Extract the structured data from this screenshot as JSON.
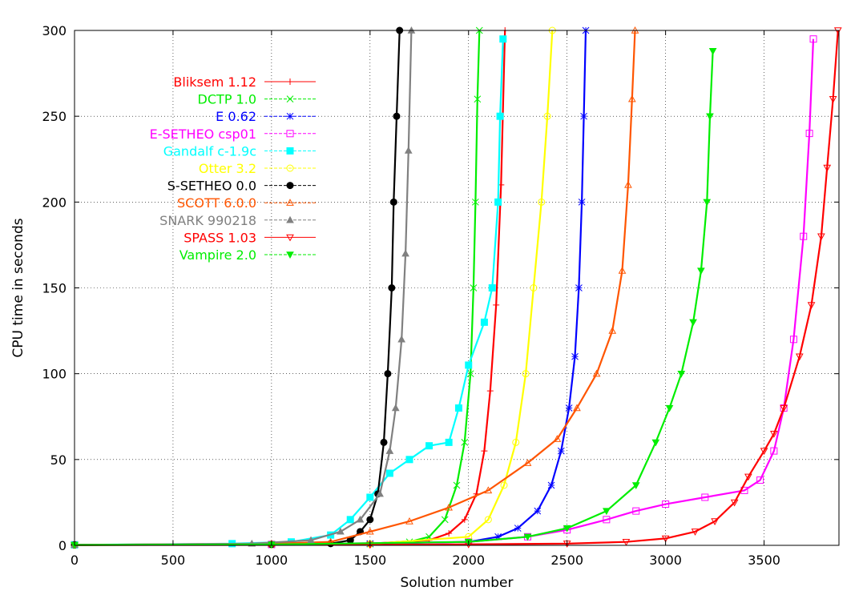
{
  "chart_data": {
    "type": "line",
    "title": "",
    "xlabel": "Solution number",
    "ylabel": "CPU time in seconds",
    "xlim": [
      0,
      3880
    ],
    "ylim": [
      0,
      300
    ],
    "xticks": [
      0,
      500,
      1000,
      1500,
      2000,
      2500,
      3000,
      3500
    ],
    "yticks": [
      0,
      50,
      100,
      150,
      200,
      250,
      300
    ],
    "grid": true,
    "legend_position": "top-left",
    "series": [
      {
        "name": "Bliksem 1.12",
        "color": "#ff0000",
        "marker": "plus",
        "points": [
          [
            0,
            0.3
          ],
          [
            1000,
            0.5
          ],
          [
            1500,
            1
          ],
          [
            1800,
            3
          ],
          [
            1900,
            7
          ],
          [
            1980,
            15
          ],
          [
            2040,
            30
          ],
          [
            2080,
            55
          ],
          [
            2110,
            90
          ],
          [
            2140,
            140
          ],
          [
            2165,
            210
          ],
          [
            2185,
            300
          ]
        ]
      },
      {
        "name": "DCTP 1.0",
        "color": "#00ee00",
        "marker": "x",
        "points": [
          [
            0,
            0.2
          ],
          [
            1000,
            0.4
          ],
          [
            1500,
            0.8
          ],
          [
            1700,
            2
          ],
          [
            1800,
            5
          ],
          [
            1880,
            15
          ],
          [
            1940,
            35
          ],
          [
            1980,
            60
          ],
          [
            2010,
            100
          ],
          [
            2025,
            150
          ],
          [
            2035,
            200
          ],
          [
            2045,
            260
          ],
          [
            2055,
            300
          ]
        ]
      },
      {
        "name": "E 0.62",
        "color": "#0000ff",
        "marker": "star",
        "points": [
          [
            0,
            0.3
          ],
          [
            1000,
            0.6
          ],
          [
            1500,
            1
          ],
          [
            2000,
            2
          ],
          [
            2150,
            5
          ],
          [
            2250,
            10
          ],
          [
            2350,
            20
          ],
          [
            2420,
            35
          ],
          [
            2470,
            55
          ],
          [
            2510,
            80
          ],
          [
            2540,
            110
          ],
          [
            2560,
            150
          ],
          [
            2575,
            200
          ],
          [
            2585,
            250
          ],
          [
            2595,
            300
          ]
        ]
      },
      {
        "name": "E-SETHEO csp01",
        "color": "#ff00ff",
        "marker": "box",
        "points": [
          [
            0,
            0.3
          ],
          [
            1000,
            0.5
          ],
          [
            2000,
            2
          ],
          [
            2300,
            5
          ],
          [
            2500,
            9
          ],
          [
            2700,
            15
          ],
          [
            2850,
            20
          ],
          [
            3000,
            24
          ],
          [
            3200,
            28
          ],
          [
            3400,
            32
          ],
          [
            3480,
            38
          ],
          [
            3550,
            55
          ],
          [
            3600,
            80
          ],
          [
            3650,
            120
          ],
          [
            3700,
            180
          ],
          [
            3730,
            240
          ],
          [
            3750,
            295
          ]
        ]
      },
      {
        "name": "Gandalf c-1.9c",
        "color": "#00ffff",
        "marker": "fullbox",
        "points": [
          [
            0,
            0.3
          ],
          [
            800,
            1
          ],
          [
            1100,
            2
          ],
          [
            1300,
            6
          ],
          [
            1400,
            15
          ],
          [
            1500,
            28
          ],
          [
            1600,
            42
          ],
          [
            1700,
            50
          ],
          [
            1800,
            58
          ],
          [
            1900,
            60
          ],
          [
            1950,
            80
          ],
          [
            2000,
            105
          ],
          [
            2080,
            130
          ],
          [
            2120,
            150
          ],
          [
            2150,
            200
          ],
          [
            2160,
            250
          ],
          [
            2175,
            295
          ]
        ]
      },
      {
        "name": "Otter 3.2",
        "color": "#ffff00",
        "marker": "circle",
        "points": [
          [
            0,
            0.2
          ],
          [
            1000,
            0.4
          ],
          [
            1500,
            0.8
          ],
          [
            2000,
            5
          ],
          [
            2100,
            15
          ],
          [
            2180,
            35
          ],
          [
            2240,
            60
          ],
          [
            2290,
            100
          ],
          [
            2330,
            150
          ],
          [
            2370,
            200
          ],
          [
            2400,
            250
          ],
          [
            2425,
            300
          ]
        ]
      },
      {
        "name": "S-SETHEO 0.0",
        "color": "#000000",
        "marker": "fullcircle",
        "points": [
          [
            0,
            0.3
          ],
          [
            1000,
            0.5
          ],
          [
            1300,
            1
          ],
          [
            1400,
            3
          ],
          [
            1450,
            8
          ],
          [
            1500,
            15
          ],
          [
            1540,
            30
          ],
          [
            1570,
            60
          ],
          [
            1590,
            100
          ],
          [
            1610,
            150
          ],
          [
            1620,
            200
          ],
          [
            1635,
            250
          ],
          [
            1650,
            300
          ]
        ]
      },
      {
        "name": "SCOTT 6.0.0",
        "color": "#ff5500",
        "marker": "triangle",
        "points": [
          [
            0,
            0.3
          ],
          [
            1000,
            1
          ],
          [
            1300,
            2
          ],
          [
            1500,
            8
          ],
          [
            1700,
            14
          ],
          [
            1900,
            22
          ],
          [
            2100,
            32
          ],
          [
            2300,
            48
          ],
          [
            2450,
            62
          ],
          [
            2550,
            80
          ],
          [
            2650,
            100
          ],
          [
            2730,
            125
          ],
          [
            2780,
            160
          ],
          [
            2810,
            210
          ],
          [
            2830,
            260
          ],
          [
            2845,
            300
          ]
        ]
      },
      {
        "name": "SNARK 990218",
        "color": "#808080",
        "marker": "fulltriangle",
        "points": [
          [
            0,
            0.3
          ],
          [
            900,
            1
          ],
          [
            1200,
            3
          ],
          [
            1350,
            8
          ],
          [
            1450,
            15
          ],
          [
            1550,
            30
          ],
          [
            1600,
            55
          ],
          [
            1630,
            80
          ],
          [
            1660,
            120
          ],
          [
            1680,
            170
          ],
          [
            1695,
            230
          ],
          [
            1710,
            300
          ]
        ]
      },
      {
        "name": "SPASS 1.03",
        "color": "#ff0000",
        "marker": "downtriangle",
        "points": [
          [
            0,
            0.2
          ],
          [
            1500,
            0.3
          ],
          [
            2000,
            0.6
          ],
          [
            2500,
            1
          ],
          [
            2800,
            2
          ],
          [
            3000,
            4
          ],
          [
            3150,
            8
          ],
          [
            3250,
            14
          ],
          [
            3350,
            25
          ],
          [
            3420,
            40
          ],
          [
            3500,
            55
          ],
          [
            3550,
            65
          ],
          [
            3600,
            80
          ],
          [
            3680,
            110
          ],
          [
            3740,
            140
          ],
          [
            3790,
            180
          ],
          [
            3820,
            220
          ],
          [
            3850,
            260
          ],
          [
            3875,
            300
          ]
        ]
      },
      {
        "name": "Vampire 2.0",
        "color": "#00ee00",
        "marker": "fulldowntriangle",
        "points": [
          [
            0,
            0.2
          ],
          [
            1000,
            0.5
          ],
          [
            2000,
            2
          ],
          [
            2300,
            5
          ],
          [
            2500,
            10
          ],
          [
            2700,
            20
          ],
          [
            2850,
            35
          ],
          [
            2950,
            60
          ],
          [
            3020,
            80
          ],
          [
            3080,
            100
          ],
          [
            3140,
            130
          ],
          [
            3180,
            160
          ],
          [
            3210,
            200
          ],
          [
            3225,
            250
          ],
          [
            3240,
            288
          ]
        ]
      }
    ]
  }
}
